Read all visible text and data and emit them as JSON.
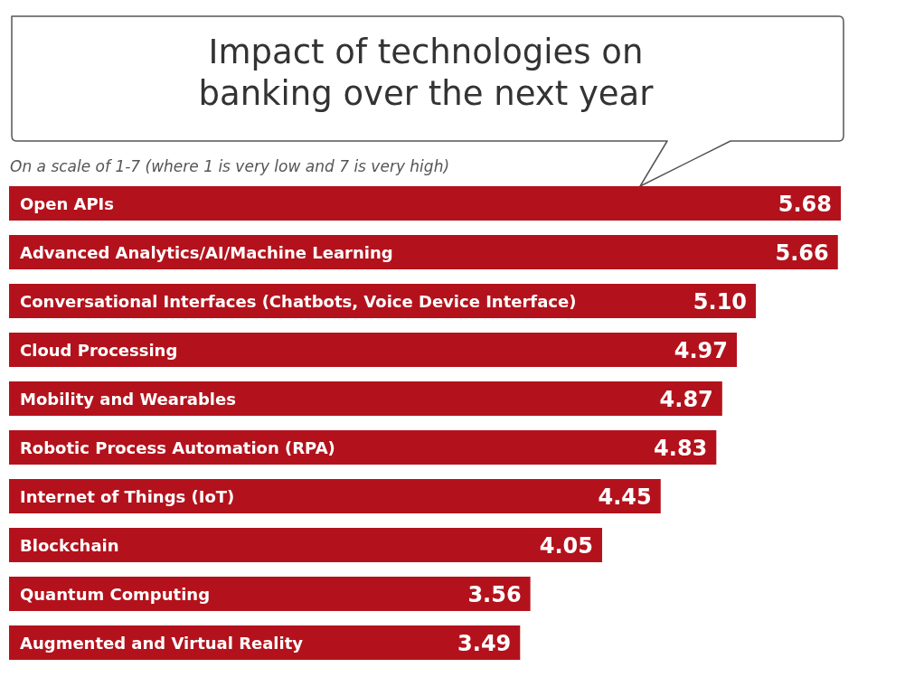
{
  "chart_data": {
    "type": "bar",
    "orientation": "horizontal",
    "title": "Impact of technologies on banking over the next year",
    "subtitle": "On a scale of 1-7 (where 1 is very low and 7 is very high)",
    "categories": [
      "Open APIs",
      "Advanced Analytics/AI/Machine Learning",
      "Conversational Interfaces (Chatbots, Voice Device Interface)",
      "Cloud Processing",
      "Mobility and Wearables",
      "Robotic Process Automation (RPA)",
      "Internet of Things (IoT)",
      "Blockchain",
      "Quantum Computing",
      "Augmented and Virtual Reality"
    ],
    "values": [
      5.68,
      5.66,
      5.1,
      4.97,
      4.87,
      4.83,
      4.45,
      4.05,
      3.56,
      3.49
    ],
    "value_labels": [
      "5.68",
      "5.66",
      "5.10",
      "4.97",
      "4.87",
      "4.83",
      "4.45",
      "4.05",
      "3.56",
      "3.49"
    ],
    "color": "#b3121c"
  }
}
